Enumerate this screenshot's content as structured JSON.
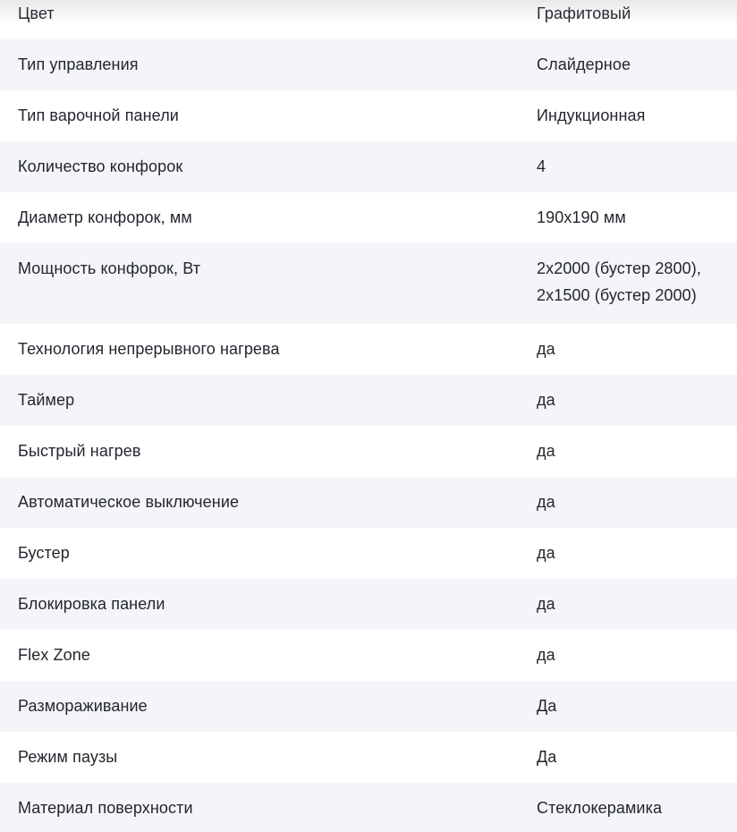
{
  "colors": {
    "row_alt_bg": "#f4f5f9",
    "text": "#23262d"
  },
  "table": {
    "rows": [
      {
        "label": "Цвет",
        "value": "Графитовый"
      },
      {
        "label": "Тип управления",
        "value": "Слайдерное"
      },
      {
        "label": "Тип варочной панели",
        "value": "Индукционная"
      },
      {
        "label": "Количество конфорок",
        "value": "4"
      },
      {
        "label": "Диаметр конфорок, мм",
        "value": "190x190 мм"
      },
      {
        "label": "Мощность конфорок, Вт",
        "value": "2x2000 (бустер 2800),\n2x1500 (бустер 2000)"
      },
      {
        "label": "Технология непрерывного нагрева",
        "value": "да"
      },
      {
        "label": "Таймер",
        "value": "да"
      },
      {
        "label": "Быстрый нагрев",
        "value": "да"
      },
      {
        "label": "Автоматическое выключение",
        "value": "да"
      },
      {
        "label": "Бустер",
        "value": "да"
      },
      {
        "label": "Блокировка панели",
        "value": "да"
      },
      {
        "label": "Flex Zone",
        "value": "да"
      },
      {
        "label": "Размораживание",
        "value": "Да"
      },
      {
        "label": "Режим паузы",
        "value": "Да"
      },
      {
        "label": "Материал поверхности",
        "value": "Стеклокерамика"
      }
    ]
  }
}
